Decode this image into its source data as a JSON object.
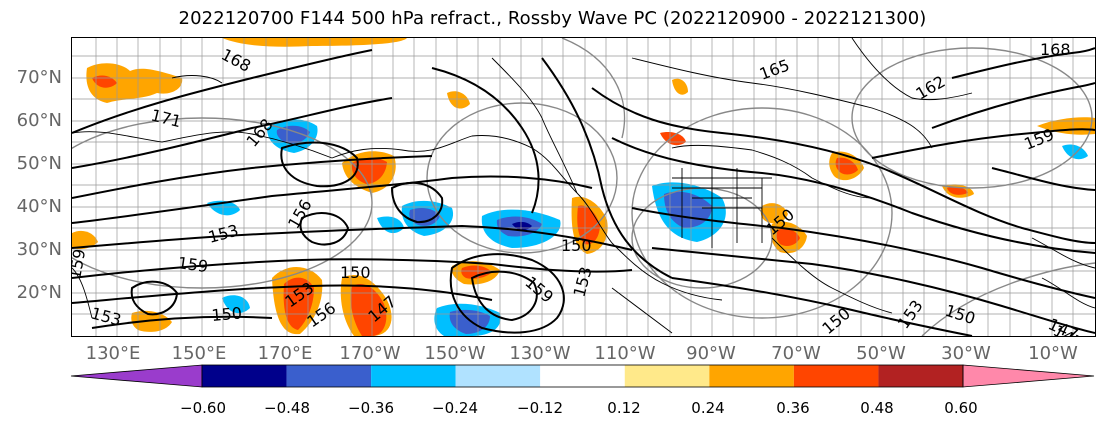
{
  "title": "2022120700 F144 500 hPa refract., Rossby Wave PC (2022120900 - 2022121300)",
  "lat_labels": [
    "70°N",
    "60°N",
    "50°N",
    "40°N",
    "30°N",
    "20°N"
  ],
  "lon_labels": [
    "130°E",
    "150°E",
    "170°E",
    "170°W",
    "150°W",
    "130°W",
    "110°W",
    "90°W",
    "70°W",
    "50°W",
    "30°W",
    "10°W"
  ],
  "contour_labels": [
    "168",
    "171",
    "168",
    "168",
    "162",
    "159",
    "156",
    "153",
    "159",
    "150",
    "150",
    "147",
    "159",
    "153",
    "150",
    "150",
    "153",
    "150",
    "147",
    "153",
    "159",
    "150",
    "153",
    "156",
    "147",
    "165"
  ],
  "colorbar": {
    "labels": [
      "−0.60",
      "−0.48",
      "−0.36",
      "−0.24",
      "−0.12",
      "0.12",
      "0.24",
      "0.36",
      "0.48",
      "0.60"
    ],
    "colors": [
      "#9a3ccc",
      "#00008b",
      "#3a5fcd",
      "#00bfff",
      "#b0e2ff",
      "#ffffff",
      "#ffe98a",
      "#ffa500",
      "#ff4500",
      "#b22222",
      "#ff88aa"
    ]
  }
}
